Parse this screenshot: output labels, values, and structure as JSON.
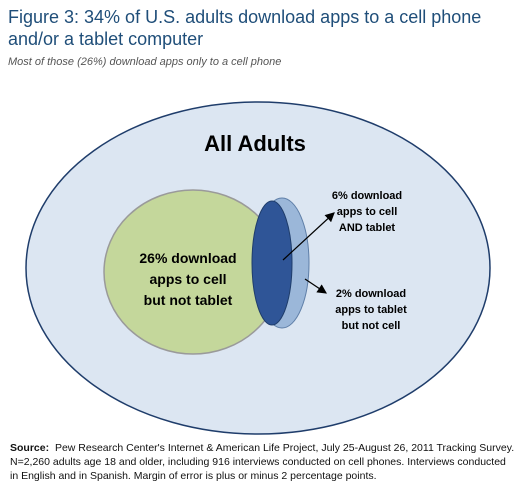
{
  "figure": {
    "title": "Figure 3: 34% of U.S. adults download apps to a cell phone and/or a tablet computer",
    "subtitle": "Most of those (26%) download apps only to a cell phone"
  },
  "diagram": {
    "outer_label": "All Adults",
    "cell_only": {
      "line1": "26% download",
      "line2": "apps to cell",
      "line3": "but not tablet"
    },
    "cell_and_tablet": {
      "line1": "6% download",
      "line2": "apps to cell",
      "line3": "AND tablet"
    },
    "tablet_only": {
      "line1": "2% download",
      "line2": "apps to tablet",
      "line3": "but not cell"
    },
    "colors": {
      "outer_fill": "#dce6f2",
      "outer_stroke": "#1f3d6b",
      "cell_fill": "#c4d79b",
      "cell_stroke": "#7f7f7f",
      "overlap_fill": "#2f5597",
      "tablet_fill": "#9bb7d9",
      "arrow": "#000000"
    }
  },
  "source": {
    "label": "Source:",
    "text": "Pew Research Center's Internet & American Life Project, July 25-August 26, 2011 Tracking Survey.  N=2,260 adults age 18 and older, including 916 interviews conducted on cell phones. Interviews conducted in English and in Spanish.  Margin of error is plus or minus 2 percentage points."
  }
}
